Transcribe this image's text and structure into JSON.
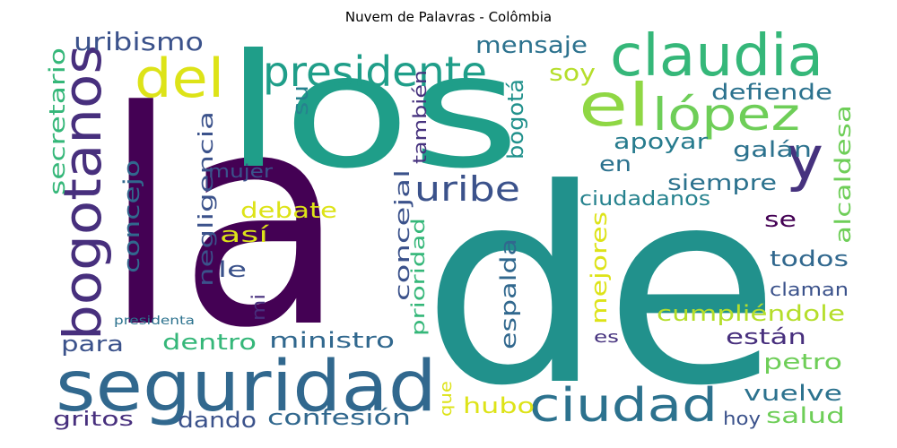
{
  "title": "Nuvem de Palavras - Colômbia",
  "palette": {
    "dark_purple": "#440154",
    "purple": "#46327e",
    "blue": "#365c8d",
    "steel": "#3b528b",
    "teal_blue": "#2c728e",
    "teal": "#21918c",
    "sea": "#1f9e89",
    "green": "#35b779",
    "light_green": "#6ece58",
    "lime": "#b5de2b",
    "yellow": "#dde318"
  },
  "words": [
    {
      "text": "la",
      "color": "#440154"
    },
    {
      "text": "de",
      "color": "#21918c"
    },
    {
      "text": "los",
      "color": "#1f9e89"
    },
    {
      "text": "seguridad",
      "color": "#31688e"
    },
    {
      "text": "bogotanos",
      "color": "#472f7d"
    },
    {
      "text": "claudia",
      "color": "#35b779"
    },
    {
      "text": "el",
      "color": "#8fd744"
    },
    {
      "text": "del",
      "color": "#dde318"
    },
    {
      "text": "presidente",
      "color": "#1f9e89"
    },
    {
      "text": "ciudad",
      "color": "#2c728e"
    },
    {
      "text": "lópez",
      "color": "#6ece58"
    },
    {
      "text": "y",
      "color": "#46327e"
    },
    {
      "text": "uribe",
      "color": "#3b528b"
    },
    {
      "text": "uribismo",
      "color": "#3b528b"
    },
    {
      "text": "mensaje",
      "color": "#2c728e"
    },
    {
      "text": "soy",
      "color": "#b5de2b"
    },
    {
      "text": "defiende",
      "color": "#2c728e"
    },
    {
      "text": "su",
      "color": "#26828e"
    },
    {
      "text": "bogotá",
      "color": "#21918c"
    },
    {
      "text": "también",
      "color": "#46327e"
    },
    {
      "text": "secretario",
      "color": "#35b779"
    },
    {
      "text": "alcaldesa",
      "color": "#6ece58"
    },
    {
      "text": "apoyar",
      "color": "#287c8e"
    },
    {
      "text": "galán",
      "color": "#2c728e"
    },
    {
      "text": "en",
      "color": "#2c728e"
    },
    {
      "text": "siempre",
      "color": "#2c728e"
    },
    {
      "text": "concejo",
      "color": "#31688e"
    },
    {
      "text": "negligencia",
      "color": "#3b528b"
    },
    {
      "text": "mujer",
      "color": "#3b528b"
    },
    {
      "text": "concejal",
      "color": "#3b528b"
    },
    {
      "text": "debate",
      "color": "#dde318"
    },
    {
      "text": "ciudadanos",
      "color": "#26828e"
    },
    {
      "text": "así",
      "color": "#dde318"
    },
    {
      "text": "se",
      "color": "#440154"
    },
    {
      "text": "le",
      "color": "#3b528b"
    },
    {
      "text": "todos",
      "color": "#31688e"
    },
    {
      "text": "prioridad",
      "color": "#35b779"
    },
    {
      "text": "espalda",
      "color": "#31688e"
    },
    {
      "text": "mejores",
      "color": "#dde318"
    },
    {
      "text": "claman",
      "color": "#3b528b"
    },
    {
      "text": "mi",
      "color": "#472f7d"
    },
    {
      "text": "presidenta",
      "color": "#2c728e"
    },
    {
      "text": "cumpliéndole",
      "color": "#b5de2b"
    },
    {
      "text": "para",
      "color": "#3b528b"
    },
    {
      "text": "dentro",
      "color": "#35b779"
    },
    {
      "text": "ministro",
      "color": "#31688e"
    },
    {
      "text": "están",
      "color": "#472f7d"
    },
    {
      "text": "es",
      "color": "#46327e"
    },
    {
      "text": "petro",
      "color": "#6ece58"
    },
    {
      "text": "que",
      "color": "#dde318"
    },
    {
      "text": "hubo",
      "color": "#dde318"
    },
    {
      "text": "vuelve",
      "color": "#2c728e"
    },
    {
      "text": "gritos",
      "color": "#472f7d"
    },
    {
      "text": "dando",
      "color": "#3b528b"
    },
    {
      "text": "confesión",
      "color": "#31688e"
    },
    {
      "text": "hoy",
      "color": "#3b528b"
    },
    {
      "text": "salud",
      "color": "#6ece58"
    }
  ]
}
